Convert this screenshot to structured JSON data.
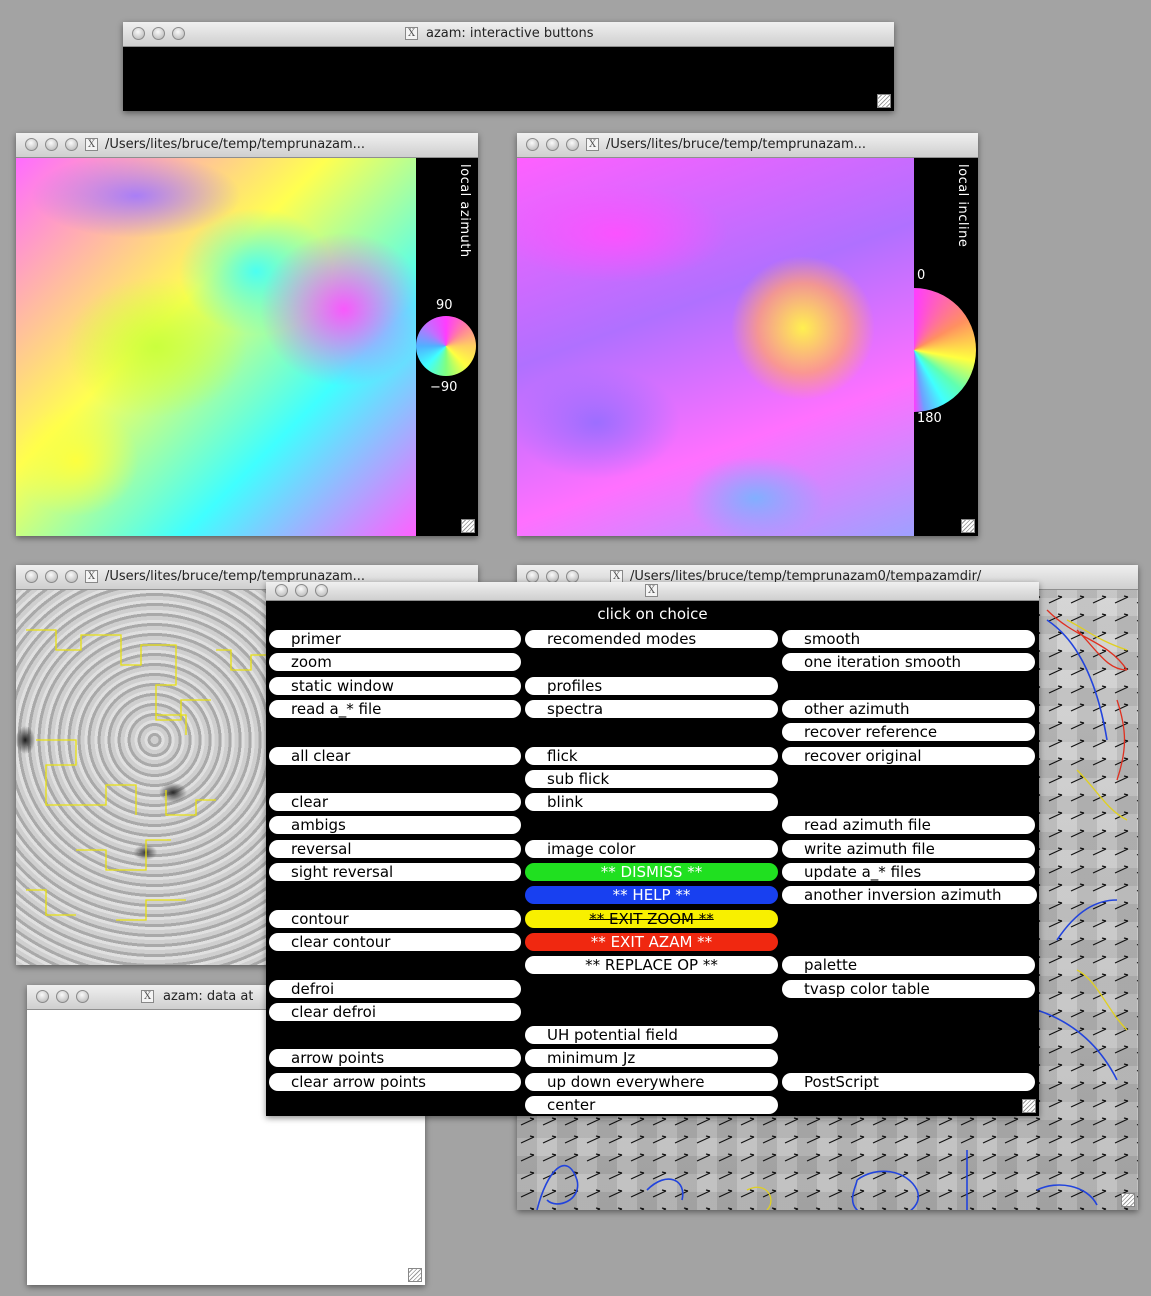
{
  "windows": {
    "buttons": {
      "title": "azam: interactive buttons"
    },
    "azimuth": {
      "title": "/Users/lites/bruce/temp/temprunazam...",
      "strip_label": "local azimuth",
      "scale_top": "90",
      "scale_bottom": "−90"
    },
    "incline": {
      "title": "/Users/lites/bruce/temp/temprunazam...",
      "strip_label": "local incline",
      "scale_top": "0",
      "scale_bottom": "180"
    },
    "continuum": {
      "title": "/Users/lites/bruce/temp/temprunazam..."
    },
    "vectors": {
      "title": "/Users/lites/bruce/temp/temprunazam0/tempazamdir/"
    },
    "data": {
      "title": "azam: data at"
    },
    "menu": {
      "title": "",
      "heading": "click on choice"
    }
  },
  "menu": {
    "col1": [
      {
        "label": "primer",
        "slot": 0
      },
      {
        "label": "zoom",
        "slot": 1
      },
      {
        "label": "static window",
        "slot": 2
      },
      {
        "label": "read a_* file",
        "slot": 3
      },
      {
        "label": "all clear",
        "slot": 5
      },
      {
        "label": "clear",
        "slot": 7
      },
      {
        "label": "ambigs",
        "slot": 8
      },
      {
        "label": "reversal",
        "slot": 9
      },
      {
        "label": "sight reversal",
        "slot": 10
      },
      {
        "label": "contour",
        "slot": 12
      },
      {
        "label": "clear contour",
        "slot": 13
      },
      {
        "label": "defroi",
        "slot": 15
      },
      {
        "label": "clear defroi",
        "slot": 16
      },
      {
        "label": "arrow points",
        "slot": 18
      },
      {
        "label": "clear arrow points",
        "slot": 19
      }
    ],
    "col2": [
      {
        "label": "recomended modes",
        "slot": 0
      },
      {
        "label": "profiles",
        "slot": 2
      },
      {
        "label": "spectra",
        "slot": 3
      },
      {
        "label": "flick",
        "slot": 5
      },
      {
        "label": "sub flick",
        "slot": 6
      },
      {
        "label": "blink",
        "slot": 7
      },
      {
        "label": "image color",
        "slot": 9
      },
      {
        "label": "** DISMISS **",
        "slot": 10,
        "style": "green"
      },
      {
        "label": "** HELP **",
        "slot": 11,
        "style": "blue"
      },
      {
        "label": "** EXIT ZOOM **",
        "slot": 12,
        "style": "yellow"
      },
      {
        "label": "** EXIT AZAM **",
        "slot": 13,
        "style": "red"
      },
      {
        "label": "** REPLACE OP **",
        "slot": 14,
        "style": "plain"
      },
      {
        "label": "UH potential field",
        "slot": 17
      },
      {
        "label": "minimum Jz",
        "slot": 18
      },
      {
        "label": "up down everywhere",
        "slot": 19
      },
      {
        "label": "center",
        "slot": 20
      }
    ],
    "col3": [
      {
        "label": "smooth",
        "slot": 0
      },
      {
        "label": "one iteration smooth",
        "slot": 1
      },
      {
        "label": "other azimuth",
        "slot": 3
      },
      {
        "label": "recover reference",
        "slot": 4
      },
      {
        "label": "recover original",
        "slot": 5
      },
      {
        "label": "read azimuth file",
        "slot": 8
      },
      {
        "label": "write azimuth file",
        "slot": 9
      },
      {
        "label": "update a_* files",
        "slot": 10
      },
      {
        "label": "another inversion azimuth",
        "slot": 11
      },
      {
        "label": "palette",
        "slot": 14
      },
      {
        "label": "tvasp color table",
        "slot": 15
      },
      {
        "label": "PostScript",
        "slot": 19
      }
    ]
  }
}
